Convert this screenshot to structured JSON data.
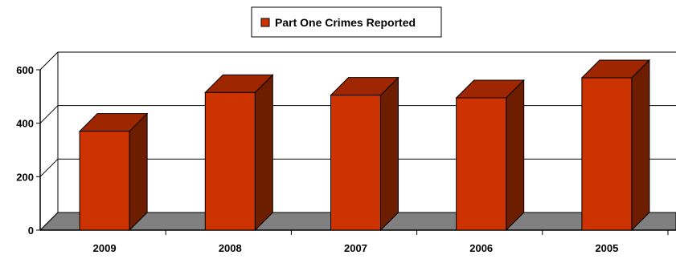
{
  "chart_data": {
    "type": "bar",
    "title": "",
    "xlabel": "",
    "ylabel": "",
    "categories": [
      "2009",
      "2008",
      "2007",
      "2006",
      "2005"
    ],
    "series": [
      {
        "name": "Part One Crimes Reported",
        "values": [
          370,
          515,
          505,
          495,
          570
        ]
      }
    ],
    "ylim": [
      0,
      600
    ],
    "yticks": [
      0,
      200,
      400,
      600
    ],
    "yticklabels": [
      "0",
      "200",
      "400",
      "600"
    ],
    "grid": true,
    "legend": "top-center",
    "projection": "3d",
    "colors": {
      "bar_front": "#cc3300",
      "bar_side": "#6e1e00",
      "bar_top": "#9e2600",
      "floor": "#808080",
      "grid": "#000000"
    }
  }
}
